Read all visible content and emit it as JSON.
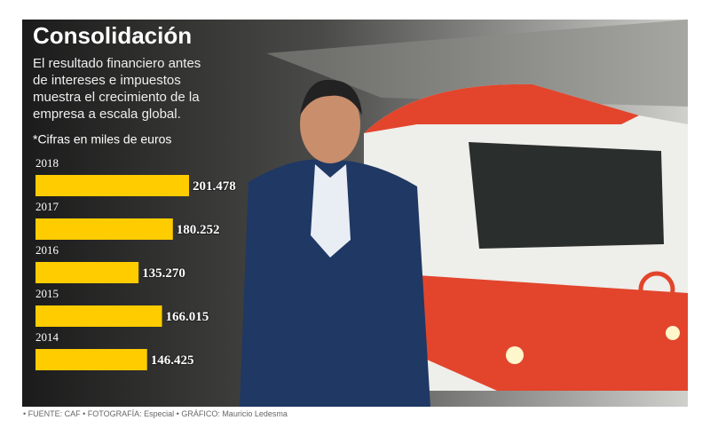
{
  "chart_data": {
    "type": "bar",
    "title": "Consolidación",
    "subtitle": "El resultado financiero antes de intereses e impuestos muestra el crecimiento de la empresa a escala global.",
    "note": "*Cifras en miles de euros",
    "categories": [
      "2018",
      "2017",
      "2016",
      "2015",
      "2014"
    ],
    "values": [
      201478,
      180252,
      135270,
      166015,
      146425
    ],
    "value_labels": [
      "201.478",
      "180.252",
      "135.270",
      "166.015",
      "146.425"
    ],
    "color": "#ffcc00",
    "footer": "• FUENTE: CAF • FOTOGRAFÍA: Especial • GRÁFICO: Mauricio Ledesma"
  }
}
